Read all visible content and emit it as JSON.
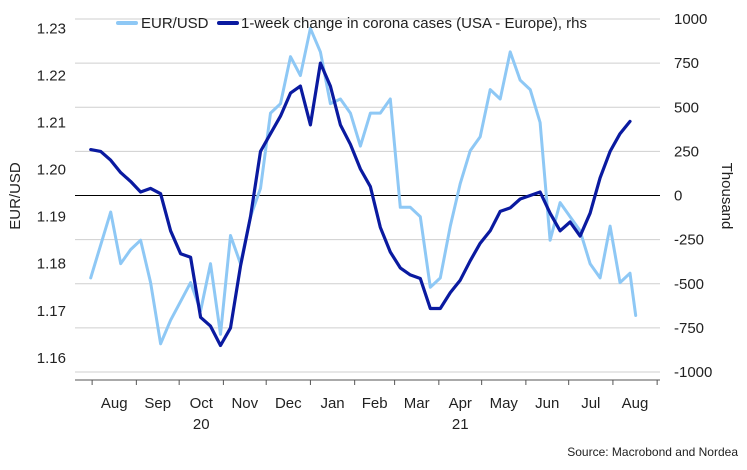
{
  "chart_data": {
    "type": "line",
    "title": "",
    "xlabel": "",
    "ylabel_left": "EUR/USD",
    "ylabel_right": "Thousand",
    "source": "Source: Macrobond and Nordea",
    "ylim_left": [
      1.157,
      1.232
    ],
    "ylim_right": [
      -1000,
      1000
    ],
    "yticks_left": [
      "1.16",
      "1.17",
      "1.18",
      "1.19",
      "1.20",
      "1.21",
      "1.22",
      "1.23"
    ],
    "yticks_right": [
      "-1000",
      "-750",
      "-500",
      "-250",
      "0",
      "250",
      "500",
      "750",
      "1000"
    ],
    "month_labels": [
      "Aug",
      "Sep",
      "Oct",
      "Nov",
      "Dec",
      "Jan",
      "Feb",
      "Mar",
      "Apr",
      "May",
      "Jun",
      "Jul",
      "Aug"
    ],
    "year_labels": [
      {
        "label": "20",
        "under": "Oct"
      },
      {
        "label": "21",
        "under": "Apr"
      }
    ],
    "grid": true,
    "legend_position": "top",
    "series": [
      {
        "name": "EUR/USD",
        "axis": "left",
        "color": "#8ec8f5",
        "x": [
          "2020-07-31",
          "2020-08-07",
          "2020-08-14",
          "2020-08-21",
          "2020-08-28",
          "2020-09-04",
          "2020-09-11",
          "2020-09-18",
          "2020-09-25",
          "2020-10-02",
          "2020-10-09",
          "2020-10-16",
          "2020-10-23",
          "2020-10-30",
          "2020-11-06",
          "2020-11-13",
          "2020-11-20",
          "2020-11-27",
          "2020-12-04",
          "2020-12-11",
          "2020-12-18",
          "2020-12-25",
          "2021-01-01",
          "2021-01-08",
          "2021-01-15",
          "2021-01-22",
          "2021-01-29",
          "2021-02-05",
          "2021-02-12",
          "2021-02-19",
          "2021-02-26",
          "2021-03-05",
          "2021-03-12",
          "2021-03-19",
          "2021-03-26",
          "2021-04-02",
          "2021-04-09",
          "2021-04-16",
          "2021-04-23",
          "2021-04-30",
          "2021-05-07",
          "2021-05-14",
          "2021-05-21",
          "2021-05-28",
          "2021-06-04",
          "2021-06-11",
          "2021-06-18",
          "2021-06-25",
          "2021-07-02",
          "2021-07-09",
          "2021-07-16",
          "2021-07-23",
          "2021-07-30",
          "2021-08-06",
          "2021-08-13",
          "2021-08-17"
        ],
        "values": [
          1.177,
          1.184,
          1.191,
          1.18,
          1.183,
          1.185,
          1.176,
          1.163,
          1.168,
          1.172,
          1.176,
          1.17,
          1.18,
          1.165,
          1.186,
          1.18,
          1.19,
          1.196,
          1.212,
          1.214,
          1.224,
          1.22,
          1.23,
          1.225,
          1.214,
          1.215,
          1.212,
          1.205,
          1.212,
          1.212,
          1.215,
          1.192,
          1.192,
          1.19,
          1.175,
          1.177,
          1.188,
          1.197,
          1.204,
          1.207,
          1.217,
          1.215,
          1.225,
          1.219,
          1.217,
          1.21,
          1.185,
          1.193,
          1.19,
          1.187,
          1.18,
          1.177,
          1.188,
          1.176,
          1.178,
          1.169
        ]
      },
      {
        "name": "1-week change in corona cases (USA - Europe), rhs",
        "axis": "right",
        "color": "#0a1aa0",
        "x": [
          "2020-07-31",
          "2020-08-07",
          "2020-08-14",
          "2020-08-21",
          "2020-08-28",
          "2020-09-04",
          "2020-09-11",
          "2020-09-18",
          "2020-09-25",
          "2020-10-02",
          "2020-10-09",
          "2020-10-16",
          "2020-10-23",
          "2020-10-30",
          "2020-11-06",
          "2020-11-13",
          "2020-11-20",
          "2020-11-27",
          "2020-12-04",
          "2020-12-11",
          "2020-12-18",
          "2020-12-25",
          "2021-01-01",
          "2021-01-08",
          "2021-01-15",
          "2021-01-22",
          "2021-01-29",
          "2021-02-05",
          "2021-02-12",
          "2021-02-19",
          "2021-02-26",
          "2021-03-05",
          "2021-03-12",
          "2021-03-19",
          "2021-03-26",
          "2021-04-02",
          "2021-04-09",
          "2021-04-16",
          "2021-04-23",
          "2021-04-30",
          "2021-05-07",
          "2021-05-14",
          "2021-05-21",
          "2021-05-28",
          "2021-06-04",
          "2021-06-11",
          "2021-06-18",
          "2021-06-25",
          "2021-07-02",
          "2021-07-09",
          "2021-07-16",
          "2021-07-23",
          "2021-07-30",
          "2021-08-06",
          "2021-08-13"
        ],
        "values": [
          260,
          250,
          200,
          130,
          80,
          20,
          40,
          10,
          -200,
          -330,
          -350,
          -690,
          -740,
          -850,
          -750,
          -400,
          -120,
          250,
          350,
          450,
          580,
          620,
          400,
          750,
          620,
          400,
          290,
          150,
          50,
          -180,
          -320,
          -410,
          -450,
          -470,
          -640,
          -640,
          -550,
          -480,
          -370,
          -270,
          -200,
          -90,
          -70,
          -20,
          0,
          20,
          -100,
          -200,
          -150,
          -230,
          -100,
          100,
          250,
          350,
          420
        ]
      }
    ]
  }
}
